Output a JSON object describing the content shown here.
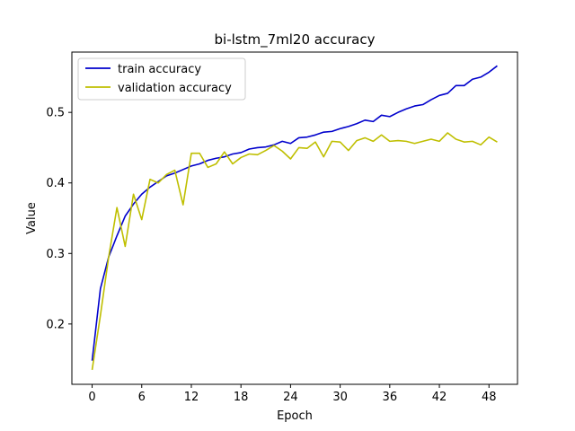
{
  "chart_data": {
    "type": "line",
    "title": "bi-lstm_7ml20 accuracy",
    "xlabel": "Epoch",
    "ylabel": "Value",
    "xlim": [
      -2.45,
      51.45
    ],
    "ylim": [
      0.1145,
      0.5855
    ],
    "xticks": [
      0,
      6,
      12,
      18,
      24,
      30,
      36,
      42,
      48
    ],
    "yticks": [
      0.2,
      0.3,
      0.4,
      0.5
    ],
    "ytick_labels": [
      "0.2",
      "0.3",
      "0.4",
      "0.5"
    ],
    "grid": false,
    "legend_position": "upper-left",
    "x": [
      0,
      1,
      2,
      3,
      4,
      5,
      6,
      7,
      8,
      9,
      10,
      11,
      12,
      13,
      14,
      15,
      16,
      17,
      18,
      19,
      20,
      21,
      22,
      23,
      24,
      25,
      26,
      27,
      28,
      29,
      30,
      31,
      32,
      33,
      34,
      35,
      36,
      37,
      38,
      39,
      40,
      41,
      42,
      43,
      44,
      45,
      46,
      47,
      48,
      49
    ],
    "series": [
      {
        "name": "train accuracy",
        "color": "#0000cc",
        "values": [
          0.148,
          0.25,
          0.295,
          0.325,
          0.353,
          0.37,
          0.384,
          0.394,
          0.402,
          0.41,
          0.414,
          0.419,
          0.424,
          0.427,
          0.432,
          0.435,
          0.437,
          0.441,
          0.443,
          0.448,
          0.45,
          0.451,
          0.454,
          0.459,
          0.456,
          0.464,
          0.465,
          0.468,
          0.472,
          0.473,
          0.477,
          0.48,
          0.484,
          0.489,
          0.487,
          0.496,
          0.494,
          0.5,
          0.505,
          0.509,
          0.511,
          0.518,
          0.524,
          0.527,
          0.538,
          0.538,
          0.547,
          0.55,
          0.557,
          0.566
        ]
      },
      {
        "name": "validation accuracy",
        "color": "#bfbf00",
        "values": [
          0.135,
          0.212,
          0.295,
          0.365,
          0.31,
          0.384,
          0.348,
          0.405,
          0.4,
          0.412,
          0.418,
          0.369,
          0.442,
          0.442,
          0.422,
          0.427,
          0.444,
          0.427,
          0.436,
          0.441,
          0.44,
          0.446,
          0.453,
          0.445,
          0.434,
          0.45,
          0.449,
          0.458,
          0.437,
          0.459,
          0.458,
          0.446,
          0.46,
          0.464,
          0.459,
          0.468,
          0.459,
          0.46,
          0.459,
          0.456,
          0.459,
          0.462,
          0.459,
          0.471,
          0.462,
          0.458,
          0.459,
          0.454,
          0.465,
          0.458
        ]
      }
    ]
  }
}
